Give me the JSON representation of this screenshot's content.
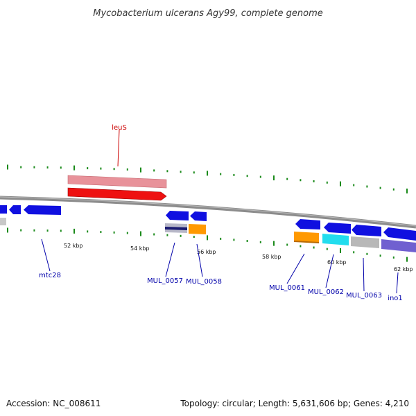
{
  "title": "Mycobacterium ulcerans Agy99, complete genome",
  "footer": {
    "accession": "Accession: NC_008611",
    "summary": "Topology: circular; Length: 5,631,606 bp; Genes: 4,210"
  },
  "colors": {
    "backbone": "#8c8c8c",
    "tick": "#1a8a1a",
    "forward_gene": "#1010e0",
    "label_blue": "#0000aa",
    "label_red": "#cc0000",
    "leus_light": "#e8929a",
    "leus_dark": "#ee1111",
    "orange": "#ff9900",
    "cyan": "#22ddee",
    "gray": "#b8b8b8",
    "purple": "#7060d0",
    "navy": "#1a1a70"
  },
  "scale_labels": [
    "52 kbp",
    "54 kbp",
    "56 kbp",
    "58 kbp",
    "60 kbp",
    "62 kbp"
  ],
  "gene_labels": {
    "leuS": "leuS",
    "mtc28": "mtc28",
    "MUL_0057": "MUL_0057",
    "MUL_0058": "MUL_0058",
    "MUL_0061": "MUL_0061",
    "MUL_0062": "MUL_0062",
    "MUL_0063": "MUL_0063",
    "ino1": "ino1"
  }
}
